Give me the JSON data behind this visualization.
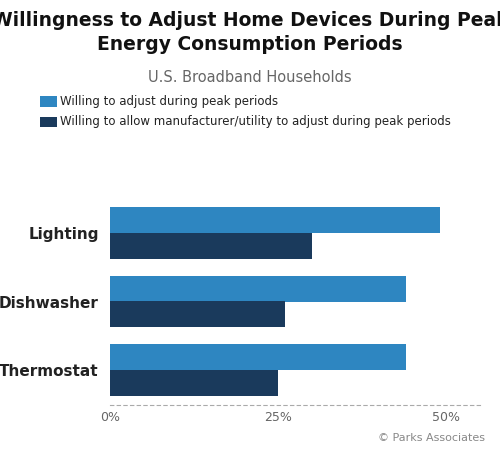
{
  "title": "Willingness to Adjust Home Devices During Peak\nEnergy Consumption Periods",
  "subtitle": "U.S. Broadband Households",
  "categories": [
    "Thermostat",
    "Dishwasher",
    "Lighting"
  ],
  "willing_adjust": [
    44,
    44,
    49
  ],
  "willing_allow": [
    25,
    26,
    30
  ],
  "color_light_blue": "#2e86c1",
  "color_dark_blue": "#1a3a5c",
  "legend_label1": "Willing to adjust during peak periods",
  "legend_label2": "Willing to allow manufacturer/utility to adjust during peak periods",
  "xlim": [
    0,
    55
  ],
  "xticks": [
    0,
    25,
    50
  ],
  "xtick_labels": [
    "0%",
    "25%",
    "50%"
  ],
  "watermark": "© Parks Associates",
  "background_color": "#ffffff",
  "title_fontsize": 13.5,
  "subtitle_fontsize": 10.5,
  "bar_height": 0.38
}
